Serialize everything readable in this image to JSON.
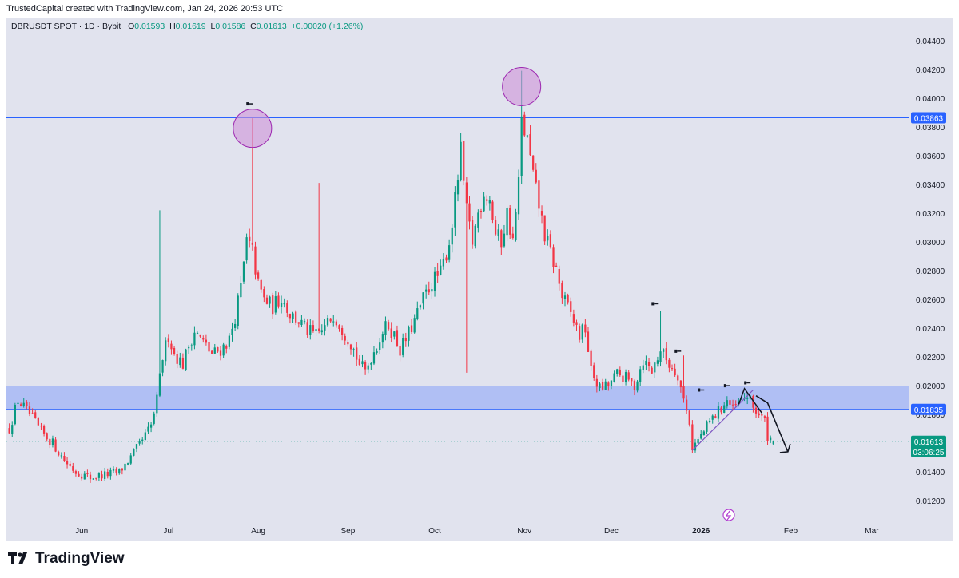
{
  "header": {
    "caption": "TrustedCapital created with TradingView.com, Jan 24, 2026 20:53 UTC"
  },
  "legend": {
    "symbol": "DBRUSDT SPOT · 1D · Bybit",
    "open_label": "O",
    "open": "0.01593",
    "high_label": "H",
    "high": "0.01619",
    "low_label": "L",
    "low": "0.01586",
    "close_label": "C",
    "close": "0.01613",
    "change": "+0.00020 (+1.26%)"
  },
  "brand": {
    "name": "TradingView"
  },
  "colors": {
    "up": "#089981",
    "down": "#f23645",
    "level_line": "#2962ff",
    "zone_fill": "#9fb3f5",
    "circle_fill": "#ce93d8",
    "circle_stroke": "#9c27b0",
    "price_badge": "#089981",
    "level_badge": "#2962ff",
    "marker_purple": "#b13fd0"
  },
  "chart_data": {
    "type": "candlestick",
    "symbol": "DBRUSDT SPOT",
    "interval": "1D",
    "exchange": "Bybit",
    "ylim": [
      0.0104,
      0.0456
    ],
    "y_ticks": [
      "0.01200",
      "0.01400",
      "0.01600",
      "0.01800",
      "0.02000",
      "0.02200",
      "0.02400",
      "0.02600",
      "0.02800",
      "0.03000",
      "0.03200",
      "0.03400",
      "0.03600",
      "0.03800",
      "0.04000",
      "0.04200",
      "0.04400"
    ],
    "x_ticks": [
      {
        "label": "Jun",
        "day": 0
      },
      {
        "label": "Jul",
        "day": 30
      },
      {
        "label": "Aug",
        "day": 61
      },
      {
        "label": "Sep",
        "day": 92
      },
      {
        "label": "Oct",
        "day": 122
      },
      {
        "label": "Nov",
        "day": 153
      },
      {
        "label": "Dec",
        "day": 183
      },
      {
        "label": "2026",
        "day": 214,
        "bold": true
      },
      {
        "label": "Feb",
        "day": 245
      },
      {
        "label": "Mar",
        "day": 273
      }
    ],
    "x_range_days": [
      -26,
      286
    ],
    "anchors": [
      [
        -25,
        0.017
      ],
      [
        -22,
        0.019
      ],
      [
        -18,
        0.018
      ],
      [
        -14,
        0.0168
      ],
      [
        -10,
        0.016
      ],
      [
        -6,
        0.0148
      ],
      [
        -2,
        0.014
      ],
      [
        3,
        0.0136
      ],
      [
        8,
        0.0138
      ],
      [
        13,
        0.014
      ],
      [
        17,
        0.015
      ],
      [
        21,
        0.0162
      ],
      [
        24,
        0.0172
      ],
      [
        26,
        0.019
      ],
      [
        28,
        0.022
      ],
      [
        30,
        0.0235
      ],
      [
        32,
        0.0222
      ],
      [
        35,
        0.0215
      ],
      [
        37,
        0.0228
      ],
      [
        39,
        0.0238
      ],
      [
        42,
        0.023
      ],
      [
        45,
        0.0222
      ],
      [
        48,
        0.0225
      ],
      [
        51,
        0.0232
      ],
      [
        53,
        0.0248
      ],
      [
        55,
        0.0268
      ],
      [
        57,
        0.03
      ],
      [
        59,
        0.0293
      ],
      [
        61,
        0.027
      ],
      [
        63,
        0.026
      ],
      [
        66,
        0.0255
      ],
      [
        69,
        0.0262
      ],
      [
        72,
        0.025
      ],
      [
        75,
        0.0245
      ],
      [
        78,
        0.0238
      ],
      [
        81,
        0.0235
      ],
      [
        84,
        0.024
      ],
      [
        87,
        0.025
      ],
      [
        90,
        0.024
      ],
      [
        93,
        0.023
      ],
      [
        96,
        0.0215
      ],
      [
        98,
        0.021
      ],
      [
        100,
        0.022
      ],
      [
        102,
        0.0228
      ],
      [
        104,
        0.0238
      ],
      [
        106,
        0.0242
      ],
      [
        108,
        0.0235
      ],
      [
        110,
        0.0225
      ],
      [
        112,
        0.0232
      ],
      [
        115,
        0.0245
      ],
      [
        118,
        0.026
      ],
      [
        121,
        0.0272
      ],
      [
        124,
        0.0278
      ],
      [
        127,
        0.03
      ],
      [
        129,
        0.0328
      ],
      [
        131,
        0.0362
      ],
      [
        133,
        0.032
      ],
      [
        135,
        0.03
      ],
      [
        137,
        0.032
      ],
      [
        139,
        0.0335
      ],
      [
        141,
        0.033
      ],
      [
        143,
        0.0305
      ],
      [
        145,
        0.03
      ],
      [
        147,
        0.032
      ],
      [
        149,
        0.03
      ],
      [
        151,
        0.034
      ],
      [
        152,
        0.0384
      ],
      [
        154,
        0.037
      ],
      [
        156,
        0.0345
      ],
      [
        158,
        0.0325
      ],
      [
        160,
        0.0305
      ],
      [
        162,
        0.0292
      ],
      [
        164,
        0.028
      ],
      [
        166,
        0.0262
      ],
      [
        169,
        0.025
      ],
      [
        172,
        0.0235
      ],
      [
        174,
        0.024
      ],
      [
        176,
        0.021
      ],
      [
        179,
        0.0198
      ],
      [
        182,
        0.02
      ],
      [
        185,
        0.0208
      ],
      [
        188,
        0.0205
      ],
      [
        191,
        0.02
      ],
      [
        194,
        0.0218
      ],
      [
        197,
        0.021
      ],
      [
        200,
        0.0225
      ],
      [
        203,
        0.0215
      ],
      [
        206,
        0.0208
      ],
      [
        208,
        0.019
      ],
      [
        210,
        0.0175
      ],
      [
        211,
        0.0157
      ],
      [
        214,
        0.0165
      ],
      [
        217,
        0.0175
      ],
      [
        220,
        0.0182
      ],
      [
        223,
        0.019
      ],
      [
        225,
        0.0183
      ],
      [
        227,
        0.0188
      ],
      [
        230,
        0.0193
      ],
      [
        232,
        0.0185
      ],
      [
        234,
        0.018
      ],
      [
        236,
        0.0175
      ],
      [
        237,
        0.0165
      ],
      [
        239,
        0.0161
      ]
    ],
    "notable_wicks": [
      {
        "day": 27,
        "high": 0.0322
      },
      {
        "day": 59,
        "high": 0.0386
      },
      {
        "day": 82,
        "high": 0.0341
      },
      {
        "day": 131,
        "high": 0.0376
      },
      {
        "day": 152,
        "high": 0.0419
      },
      {
        "day": 200,
        "high": 0.0252
      },
      {
        "day": 208,
        "high": 0.0221
      },
      {
        "day": 133,
        "low": 0.0209
      }
    ],
    "last_candle": {
      "open": 0.01593,
      "high": 0.01619,
      "low": 0.01586,
      "close": 0.01613
    },
    "levels": [
      {
        "price": 0.03863,
        "label": "0.03863",
        "type": "horizontal_line"
      },
      {
        "price": 0.01835,
        "label": "0.01835",
        "type": "zone_bottom"
      }
    ],
    "zone": {
      "from": 0.01835,
      "to": 0.02
    },
    "current_price": {
      "value": 0.01613,
      "label": "0.01613",
      "countdown": "03:06:25"
    },
    "circles": [
      {
        "day": 59,
        "price": 0.0379,
        "note": "wick high highlight"
      },
      {
        "day": 152,
        "price": 0.0408,
        "note": "all-time wick high highlight"
      }
    ],
    "projection": [
      {
        "day": 233,
        "price": 0.0193
      },
      {
        "day": 237,
        "price": 0.0188
      },
      {
        "day": 244,
        "price": 0.0154
      }
    ],
    "trendline": [
      {
        "day": 211,
        "price": 0.0155
      },
      {
        "day": 232,
        "price": 0.0197
      }
    ],
    "pattern_zigzag": [
      {
        "day": 227,
        "price": 0.0187
      },
      {
        "day": 229,
        "price": 0.0198
      },
      {
        "day": 235,
        "price": 0.0181
      }
    ],
    "fractal_markers": [
      {
        "day": 58,
        "price": 0.0396
      },
      {
        "day": 198,
        "price": 0.0257
      },
      {
        "day": 206,
        "price": 0.0224
      },
      {
        "day": 214,
        "price": 0.0197
      },
      {
        "day": 223,
        "price": 0.02
      },
      {
        "day": 230,
        "price": 0.0202
      }
    ]
  }
}
